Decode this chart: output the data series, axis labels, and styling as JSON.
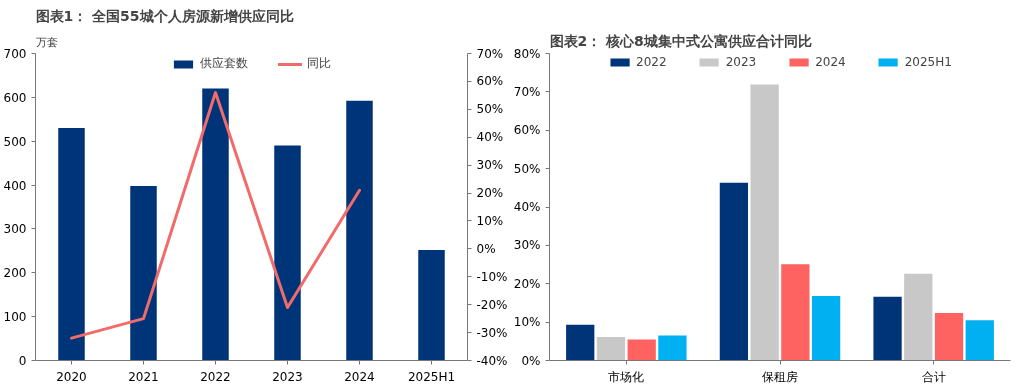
{
  "chart_data": [
    {
      "type": "bar",
      "title": "图表1：  全国55城个人房源新增供应同比",
      "ylabel": "万套",
      "categories": [
        "2020",
        "2021",
        "2022",
        "2023",
        "2024",
        "2025H1"
      ],
      "series": [
        {
          "name": "供应套数",
          "type": "bar",
          "color": "#003478",
          "values": [
            530,
            398,
            620,
            490,
            592,
            252
          ]
        },
        {
          "name": "同比",
          "type": "line",
          "axis": "y2",
          "color": "#f26b6b",
          "values": [
            -32,
            -25,
            56,
            -21,
            21,
            null
          ]
        }
      ],
      "ylim": [
        0,
        700
      ],
      "yticks": [
        0,
        100,
        200,
        300,
        400,
        500,
        600,
        700
      ],
      "y2lim": [
        -40,
        70
      ],
      "y2ticks": [
        {
          "value": -40,
          "label": "-40%"
        },
        {
          "value": -30,
          "label": "-30%"
        },
        {
          "value": -20,
          "label": "-20%"
        },
        {
          "value": -10,
          "label": "-10%"
        },
        {
          "value": 0,
          "label": "0%"
        },
        {
          "value": 10,
          "label": "10%"
        },
        {
          "value": 20,
          "label": "20%"
        },
        {
          "value": 30,
          "label": "30%"
        },
        {
          "value": 40,
          "label": "40%"
        },
        {
          "value": 50,
          "label": "50%"
        },
        {
          "value": 60,
          "label": "60%"
        },
        {
          "value": 70,
          "label": "70%"
        }
      ],
      "legend": "top",
      "grid": false
    },
    {
      "type": "bar",
      "title": "图表2：  核心8城集中式公寓供应合计同比",
      "categories": [
        "市场化",
        "保租房",
        "合计"
      ],
      "series": [
        {
          "name": "2022",
          "color": "#003478",
          "values": [
            9.3,
            46.3,
            16.6
          ]
        },
        {
          "name": "2023",
          "color": "#c8c8c8",
          "values": [
            6.1,
            71.9,
            22.6
          ]
        },
        {
          "name": "2024",
          "color": "#ff6361",
          "values": [
            5.5,
            25.1,
            12.4
          ]
        },
        {
          "name": "2025H1",
          "color": "#00b0f0",
          "values": [
            6.5,
            16.8,
            10.5
          ]
        }
      ],
      "ylim": [
        0,
        80
      ],
      "yticks": [
        {
          "value": 0,
          "label": "0%"
        },
        {
          "value": 10,
          "label": "10%"
        },
        {
          "value": 20,
          "label": "20%"
        },
        {
          "value": 30,
          "label": "30%"
        },
        {
          "value": 40,
          "label": "40%"
        },
        {
          "value": 50,
          "label": "50%"
        },
        {
          "value": 60,
          "label": "60%"
        },
        {
          "value": 70,
          "label": "70%"
        },
        {
          "value": 80,
          "label": "80%"
        }
      ],
      "legend": "top",
      "grid": false
    }
  ]
}
